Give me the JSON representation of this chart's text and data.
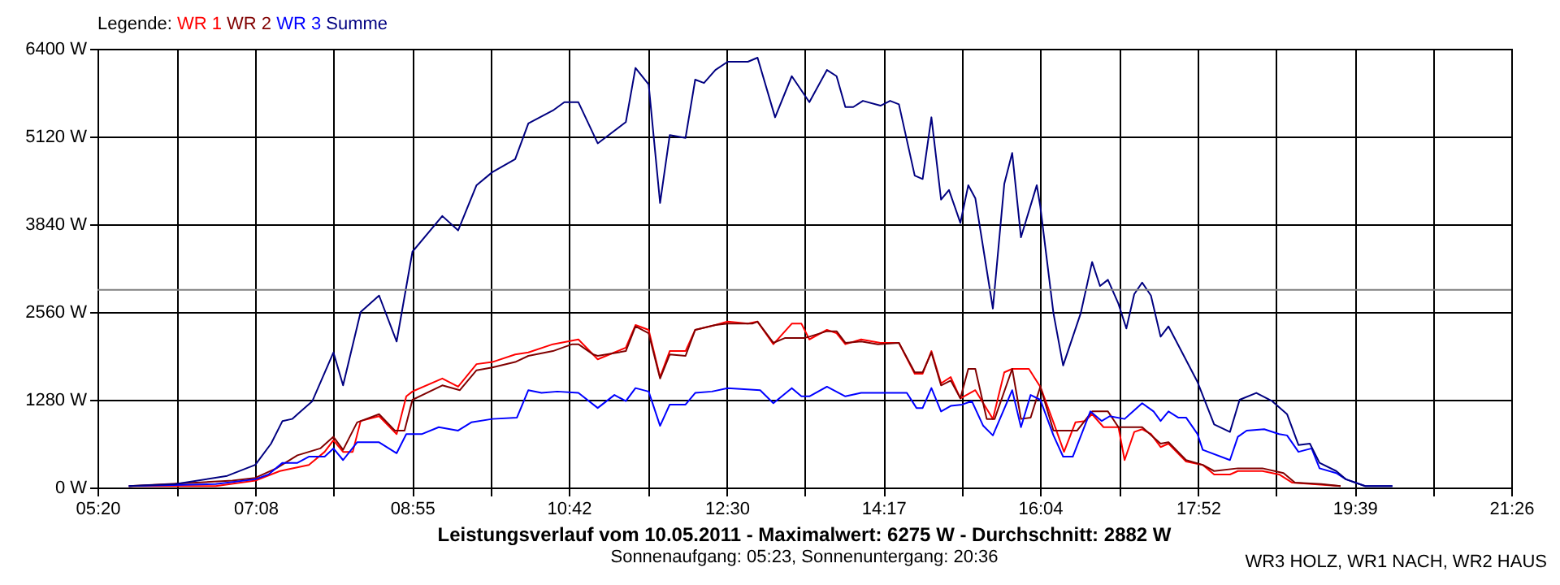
{
  "chart_data": {
    "type": "line",
    "title": "Leistungsverlauf vom 10.05.2011 - Maximalwert: 6275 W - Durchschnitt: 2882 W",
    "subtitle": "Sonnenaufgang: 05:23, Sonnenuntergang: 20:36",
    "legend_title": "Legende:",
    "legend": "top left",
    "grid": true,
    "line_style": "solid",
    "annotations": [
      "WR3 HOLZ, WR1 NACH, WR2 HAUS"
    ],
    "xlim": [
      5.3333,
      21.4333
    ],
    "xticks": [
      {
        "value": 5.3333,
        "label": "05:20"
      },
      {
        "value": 6.2333,
        "label": null
      },
      {
        "value": 7.1333,
        "label": "07:08"
      },
      {
        "value": 8.025,
        "label": null
      },
      {
        "value": 8.9167,
        "label": "08:55"
      },
      {
        "value": 9.8083,
        "label": null
      },
      {
        "value": 10.7,
        "label": "10:42"
      },
      {
        "value": 11.6,
        "label": null
      },
      {
        "value": 12.5,
        "label": "12:30"
      },
      {
        "value": 13.3917,
        "label": null
      },
      {
        "value": 14.2833,
        "label": "14:17"
      },
      {
        "value": 15.175,
        "label": null
      },
      {
        "value": 16.0667,
        "label": "16:04"
      },
      {
        "value": 16.9667,
        "label": null
      },
      {
        "value": 17.8667,
        "label": "17:52"
      },
      {
        "value": 18.7583,
        "label": null
      },
      {
        "value": 19.65,
        "label": "19:39"
      },
      {
        "value": 20.5417,
        "label": null
      },
      {
        "value": 21.4333,
        "label": "21:26"
      }
    ],
    "ylim": [
      0,
      6400
    ],
    "yticks": [
      {
        "value": 0,
        "label": "0 W"
      },
      {
        "value": 1280,
        "label": "1280 W"
      },
      {
        "value": 2560,
        "label": "2560 W"
      },
      {
        "value": 3840,
        "label": "3840 W"
      },
      {
        "value": 5120,
        "label": "5120 W"
      },
      {
        "value": 6400,
        "label": "6400 W"
      }
    ],
    "ref_lines": [
      {
        "axis": "y",
        "value": 2882,
        "label": null,
        "color": "#808080"
      }
    ],
    "series": [
      {
        "name": "WR 1",
        "color": "#ff0000",
        "x": [
          5.69,
          6.68,
          7.13,
          7.41,
          7.74,
          7.92,
          8.02,
          8.13,
          8.24,
          8.33,
          8.54,
          8.74,
          8.85,
          8.92,
          9.26,
          9.44,
          9.65,
          9.83,
          10.09,
          10.24,
          10.52,
          10.81,
          11.03,
          11.22,
          11.35,
          11.46,
          11.61,
          11.74,
          11.85,
          12.03,
          12.14,
          12.37,
          12.51,
          12.74,
          12.85,
          13.03,
          13.24,
          13.35,
          13.44,
          13.64,
          13.75,
          13.85,
          14.03,
          14.25,
          14.46,
          14.64,
          14.73,
          14.83,
          14.94,
          15.05,
          15.16,
          15.33,
          15.53,
          15.66,
          15.75,
          15.94,
          16.07,
          16.22,
          16.34,
          16.47,
          16.58,
          16.66,
          16.79,
          16.96,
          17.03,
          17.14,
          17.23,
          17.33,
          17.44,
          17.53,
          17.73,
          17.92,
          18.05,
          18.23,
          18.32,
          18.6,
          18.79,
          18.94,
          19.49
        ],
        "values": [
          20,
          20,
          100,
          240,
          330,
          520,
          690,
          520,
          520,
          970,
          1040,
          780,
          1330,
          1400,
          1590,
          1470,
          1800,
          1830,
          1940,
          1970,
          2090,
          2160,
          1870,
          1970,
          2040,
          2370,
          2300,
          1610,
          1990,
          1990,
          2300,
          2370,
          2420,
          2390,
          2420,
          2090,
          2390,
          2390,
          2160,
          2300,
          2250,
          2090,
          2160,
          2110,
          2110,
          1660,
          1660,
          1990,
          1520,
          1610,
          1300,
          1420,
          1000,
          1680,
          1730,
          1730,
          1470,
          950,
          520,
          950,
          970,
          1070,
          880,
          880,
          400,
          810,
          850,
          780,
          590,
          640,
          380,
          330,
          190,
          190,
          240,
          240,
          190,
          70,
          20
        ]
      },
      {
        "name": "WR 2",
        "color": "#800000",
        "x": [
          5.69,
          6.87,
          7.13,
          7.37,
          7.61,
          7.87,
          8.02,
          8.13,
          8.29,
          8.54,
          8.72,
          8.83,
          8.92,
          9.26,
          9.46,
          9.65,
          9.83,
          10.09,
          10.24,
          10.52,
          10.74,
          10.81,
          10.98,
          11.03,
          11.35,
          11.46,
          11.61,
          11.74,
          11.85,
          12.03,
          12.14,
          12.37,
          12.51,
          12.79,
          12.85,
          13.03,
          13.16,
          13.38,
          13.44,
          13.64,
          13.75,
          13.85,
          14.03,
          14.22,
          14.46,
          14.64,
          14.73,
          14.83,
          14.94,
          15.05,
          15.16,
          15.25,
          15.33,
          15.46,
          15.55,
          15.75,
          15.85,
          15.96,
          16.07,
          16.22,
          16.49,
          16.66,
          16.84,
          16.96,
          17.23,
          17.44,
          17.53,
          17.73,
          17.92,
          18.05,
          18.32,
          18.6,
          18.84,
          18.97,
          19.27,
          19.49
        ],
        "values": [
          20,
          100,
          140,
          280,
          470,
          570,
          740,
          550,
          950,
          1070,
          830,
          830,
          1280,
          1490,
          1420,
          1710,
          1750,
          1830,
          1920,
          1990,
          2090,
          2090,
          1940,
          1920,
          1990,
          2350,
          2250,
          1590,
          1940,
          1920,
          2300,
          2370,
          2390,
          2390,
          2420,
          2110,
          2180,
          2180,
          2200,
          2280,
          2280,
          2110,
          2130,
          2090,
          2110,
          1680,
          1680,
          1970,
          1490,
          1560,
          1300,
          1730,
          1730,
          1000,
          1000,
          1730,
          1000,
          1020,
          1470,
          830,
          830,
          1110,
          1110,
          880,
          880,
          640,
          660,
          400,
          330,
          240,
          280,
          280,
          210,
          70,
          50,
          20
        ]
      },
      {
        "name": "WR 3",
        "color": "#0000ff",
        "x": [
          5.69,
          6.68,
          7.13,
          7.28,
          7.44,
          7.61,
          7.74,
          7.92,
          8.02,
          8.13,
          8.29,
          8.54,
          8.74,
          8.85,
          9.03,
          9.22,
          9.44,
          9.59,
          9.83,
          10.11,
          10.24,
          10.39,
          10.57,
          10.81,
          11.03,
          11.22,
          11.35,
          11.46,
          11.61,
          11.74,
          11.85,
          12.03,
          12.14,
          12.33,
          12.51,
          12.88,
          13.03,
          13.24,
          13.35,
          13.44,
          13.64,
          13.85,
          14.03,
          14.55,
          14.66,
          14.73,
          14.83,
          14.94,
          15.05,
          15.18,
          15.29,
          15.42,
          15.53,
          15.75,
          15.85,
          15.96,
          16.07,
          16.22,
          16.33,
          16.44,
          16.64,
          16.77,
          16.86,
          17.03,
          17.23,
          17.36,
          17.44,
          17.53,
          17.64,
          17.73,
          17.86,
          17.92,
          18.23,
          18.32,
          18.42,
          18.62,
          18.79,
          18.88,
          19.01,
          19.16,
          19.25,
          19.44,
          19.55,
          19.77,
          20.08
        ],
        "values": [
          20,
          50,
          120,
          190,
          360,
          360,
          450,
          450,
          570,
          400,
          660,
          660,
          500,
          780,
          780,
          880,
          830,
          950,
          1000,
          1020,
          1420,
          1380,
          1400,
          1380,
          1160,
          1350,
          1260,
          1450,
          1400,
          900,
          1210,
          1210,
          1380,
          1400,
          1450,
          1420,
          1230,
          1450,
          1330,
          1330,
          1470,
          1330,
          1380,
          1380,
          1160,
          1160,
          1450,
          1110,
          1190,
          1210,
          1260,
          900,
          760,
          1420,
          880,
          1350,
          1280,
          760,
          450,
          450,
          1110,
          970,
          1040,
          1000,
          1230,
          1110,
          970,
          1110,
          1020,
          1020,
          780,
          550,
          400,
          740,
          830,
          850,
          780,
          760,
          520,
          570,
          280,
          210,
          120,
          20,
          20
        ]
      },
      {
        "name": "Summe",
        "color": "#000080",
        "x": [
          5.69,
          6.22,
          6.81,
          7.13,
          7.31,
          7.44,
          7.55,
          7.78,
          8.02,
          8.13,
          8.33,
          8.54,
          8.74,
          8.92,
          9.26,
          9.44,
          9.65,
          9.83,
          10.09,
          10.24,
          10.52,
          10.65,
          10.81,
          11.03,
          11.35,
          11.46,
          11.61,
          11.74,
          11.85,
          12.03,
          12.14,
          12.24,
          12.37,
          12.51,
          12.74,
          12.85,
          13.05,
          13.24,
          13.44,
          13.64,
          13.75,
          13.85,
          13.94,
          14.05,
          14.25,
          14.36,
          14.46,
          14.64,
          14.73,
          14.83,
          14.94,
          15.03,
          15.16,
          15.25,
          15.33,
          15.53,
          15.66,
          15.75,
          15.85,
          16.03,
          16.07,
          16.22,
          16.33,
          16.53,
          16.66,
          16.75,
          16.84,
          16.96,
          17.05,
          17.14,
          17.23,
          17.33,
          17.44,
          17.53,
          17.86,
          18.05,
          18.23,
          18.34,
          18.53,
          18.71,
          18.88,
          19.01,
          19.14,
          19.25,
          19.44,
          19.55,
          19.77,
          20.08
        ],
        "values": [
          20,
          50,
          170,
          330,
          640,
          970,
          1000,
          1260,
          1970,
          1490,
          2560,
          2800,
          2130,
          3440,
          3960,
          3750,
          4410,
          4600,
          4790,
          5310,
          5500,
          5620,
          5620,
          5020,
          5330,
          6120,
          5880,
          4150,
          5140,
          5100,
          5950,
          5900,
          6090,
          6210,
          6210,
          6270,
          5400,
          6000,
          5620,
          6090,
          6000,
          5550,
          5550,
          5640,
          5570,
          5640,
          5590,
          4550,
          4500,
          5400,
          4200,
          4340,
          3860,
          4410,
          4220,
          2610,
          4430,
          4880,
          3650,
          4410,
          4100,
          2540,
          1780,
          2540,
          3290,
          2940,
          3030,
          2680,
          2320,
          2820,
          2990,
          2800,
          2200,
          2350,
          1540,
          920,
          810,
          1280,
          1380,
          1260,
          1070,
          620,
          640,
          360,
          240,
          120,
          20,
          20
        ]
      }
    ]
  }
}
